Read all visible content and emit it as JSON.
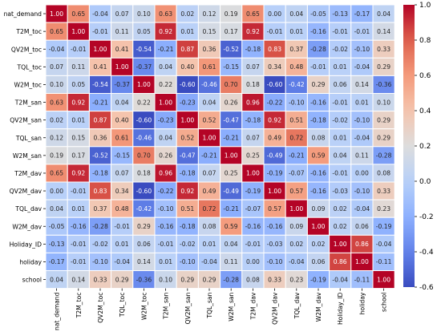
{
  "chart_data": {
    "type": "heatmap",
    "title": "",
    "xlabel": "",
    "ylabel": "",
    "labels": [
      "nat_demand",
      "T2M_toc",
      "QV2M_toc",
      "TQL_toc",
      "W2M_toc",
      "T2M_san",
      "QV2M_san",
      "TQL_san",
      "W2M_san",
      "T2M_dav",
      "QV2M_dav",
      "TQL_dav",
      "W2M_dav",
      "Holiday_ID",
      "holiday",
      "school"
    ],
    "matrix": [
      [
        1.0,
        0.65,
        -0.04,
        0.07,
        0.1,
        0.63,
        0.02,
        0.12,
        0.19,
        0.65,
        -0.0,
        0.04,
        -0.05,
        -0.13,
        -0.17,
        0.04
      ],
      [
        0.65,
        1.0,
        -0.01,
        0.11,
        0.05,
        0.92,
        0.01,
        0.15,
        0.17,
        0.92,
        -0.01,
        0.01,
        -0.16,
        -0.01,
        -0.01,
        0.14
      ],
      [
        -0.04,
        -0.01,
        1.0,
        0.41,
        -0.54,
        -0.21,
        0.87,
        0.36,
        -0.52,
        -0.18,
        0.83,
        0.37,
        -0.28,
        -0.02,
        -0.1,
        0.33
      ],
      [
        0.07,
        0.11,
        0.41,
        1.0,
        -0.37,
        0.04,
        0.4,
        0.61,
        -0.15,
        0.07,
        0.34,
        0.48,
        -0.01,
        0.01,
        -0.04,
        0.29
      ],
      [
        0.1,
        0.05,
        -0.54,
        -0.37,
        1.0,
        0.22,
        -0.6,
        -0.46,
        0.7,
        0.18,
        -0.6,
        -0.42,
        0.29,
        0.06,
        0.14,
        -0.36
      ],
      [
        0.63,
        0.92,
        -0.21,
        0.04,
        0.22,
        1.0,
        -0.23,
        0.04,
        0.26,
        0.96,
        -0.22,
        -0.1,
        -0.16,
        -0.01,
        0.01,
        0.1
      ],
      [
        0.02,
        0.01,
        0.87,
        0.4,
        -0.6,
        -0.23,
        1.0,
        0.52,
        -0.47,
        -0.18,
        0.92,
        0.51,
        -0.18,
        -0.02,
        -0.1,
        0.29
      ],
      [
        0.12,
        0.15,
        0.36,
        0.61,
        -0.46,
        0.04,
        0.52,
        1.0,
        -0.21,
        0.07,
        0.49,
        0.72,
        0.08,
        0.01,
        -0.04,
        0.29
      ],
      [
        0.19,
        0.17,
        -0.52,
        -0.15,
        0.7,
        0.26,
        -0.47,
        -0.21,
        1.0,
        0.25,
        -0.49,
        -0.21,
        0.59,
        0.04,
        0.11,
        -0.28
      ],
      [
        0.65,
        0.92,
        -0.18,
        0.07,
        0.18,
        0.96,
        -0.18,
        0.07,
        0.25,
        1.0,
        -0.19,
        -0.07,
        -0.16,
        -0.01,
        0.0,
        0.08
      ],
      [
        -0.0,
        -0.01,
        0.83,
        0.34,
        -0.6,
        -0.22,
        0.92,
        0.49,
        -0.49,
        -0.19,
        1.0,
        0.57,
        -0.16,
        -0.03,
        -0.1,
        0.33
      ],
      [
        0.04,
        0.01,
        0.37,
        0.48,
        -0.42,
        -0.1,
        0.51,
        0.72,
        -0.21,
        -0.07,
        0.57,
        1.0,
        0.09,
        0.02,
        -0.04,
        0.23
      ],
      [
        -0.05,
        -0.16,
        -0.28,
        -0.01,
        0.29,
        -0.16,
        -0.18,
        0.08,
        0.59,
        -0.16,
        -0.16,
        0.09,
        1.0,
        0.02,
        0.06,
        -0.19
      ],
      [
        -0.13,
        -0.01,
        -0.02,
        0.01,
        0.06,
        -0.01,
        -0.02,
        0.01,
        0.04,
        -0.01,
        -0.03,
        0.02,
        0.02,
        1.0,
        0.86,
        -0.04
      ],
      [
        -0.17,
        -0.01,
        -0.1,
        -0.04,
        0.14,
        0.01,
        -0.1,
        -0.04,
        0.11,
        0.0,
        -0.1,
        -0.04,
        0.06,
        0.86,
        1.0,
        -0.11
      ],
      [
        0.04,
        0.14,
        0.33,
        0.29,
        -0.36,
        0.1,
        0.29,
        0.29,
        -0.28,
        0.08,
        0.33,
        0.23,
        -0.19,
        -0.04,
        -0.11,
        1.0
      ]
    ],
    "color_range": [
      -0.6,
      1.0
    ],
    "colorbar_ticks": [
      1.0,
      0.8,
      0.6,
      0.4,
      0.2,
      0.0,
      -0.2,
      -0.4,
      -0.6
    ],
    "colorbar_tick_labels": [
      "1.0",
      "0.8",
      "0.6",
      "0.4",
      "0.2",
      "0.0",
      "-0.2",
      "-0.4",
      "-0.6"
    ],
    "colormap": "coolwarm",
    "cell_border_color": "#ffffff",
    "annotation_format": "2 decimals"
  }
}
